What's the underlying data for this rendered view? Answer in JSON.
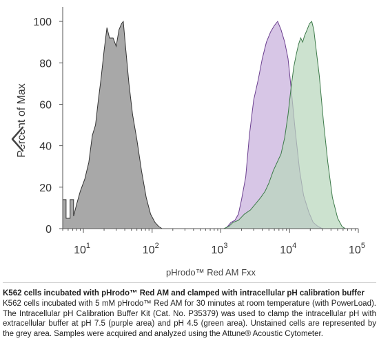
{
  "chart_data": {
    "type": "area",
    "title": "",
    "ylabel": "Percent of Max",
    "xlabel": "pHrodo™ Red AM Fxx",
    "xscale": "log",
    "xlim": [
      5,
      100000
    ],
    "ylim": [
      0,
      107
    ],
    "yticks": [
      "0",
      "20",
      "40",
      "60",
      "80",
      "100"
    ],
    "xticks": [
      {
        "value": 10,
        "base": "10",
        "exp": "1"
      },
      {
        "value": 100,
        "base": "10",
        "exp": "2"
      },
      {
        "value": 1000,
        "base": "10",
        "exp": "3"
      },
      {
        "value": 10000,
        "base": "10",
        "exp": "4"
      },
      {
        "value": 100000,
        "base": "10",
        "exp": "5"
      }
    ],
    "grid": false,
    "series": [
      {
        "key": "unstained",
        "color": "#a8a8a8",
        "stroke": "#333333",
        "points": [
          [
            5,
            0
          ],
          [
            5,
            14
          ],
          [
            5.6,
            14
          ],
          [
            5.6,
            5
          ],
          [
            6.4,
            5
          ],
          [
            6.4,
            14
          ],
          [
            7.2,
            14
          ],
          [
            7.2,
            6
          ],
          [
            8,
            12
          ],
          [
            9,
            18
          ],
          [
            10.5,
            24
          ],
          [
            12,
            32
          ],
          [
            13.5,
            45
          ],
          [
            15,
            50
          ],
          [
            16.5,
            62
          ],
          [
            18,
            72
          ],
          [
            20,
            86
          ],
          [
            22,
            97
          ],
          [
            24,
            92
          ],
          [
            27,
            92
          ],
          [
            30,
            88
          ],
          [
            33,
            96
          ],
          [
            36,
            99
          ],
          [
            38,
            100
          ],
          [
            41,
            88
          ],
          [
            46,
            70
          ],
          [
            52,
            55
          ],
          [
            60,
            43
          ],
          [
            70,
            28
          ],
          [
            82,
            15
          ],
          [
            95,
            7
          ],
          [
            110,
            3
          ],
          [
            125,
            1
          ],
          [
            140,
            0
          ]
        ]
      },
      {
        "key": "pH 7.5",
        "color": "#c8b0dc",
        "stroke": "#6b3f8f",
        "points": [
          [
            900,
            0
          ],
          [
            1150,
            0
          ],
          [
            1250,
            1
          ],
          [
            1400,
            3
          ],
          [
            1600,
            4
          ],
          [
            1800,
            7
          ],
          [
            2000,
            14
          ],
          [
            2300,
            25
          ],
          [
            2600,
            45
          ],
          [
            3000,
            62
          ],
          [
            3500,
            72
          ],
          [
            4000,
            82
          ],
          [
            4600,
            90
          ],
          [
            5300,
            95
          ],
          [
            6000,
            98
          ],
          [
            6700,
            100
          ],
          [
            7500,
            96
          ],
          [
            8500,
            90
          ],
          [
            9500,
            82
          ],
          [
            10500,
            68
          ],
          [
            12000,
            48
          ],
          [
            14000,
            28
          ],
          [
            16000,
            16
          ],
          [
            19000,
            8
          ],
          [
            22000,
            3
          ],
          [
            26000,
            1
          ],
          [
            30000,
            0
          ]
        ]
      },
      {
        "key": "pH 4.5",
        "color": "#b9d7bd",
        "stroke": "#3d7a4a",
        "points": [
          [
            1100,
            0
          ],
          [
            1300,
            1
          ],
          [
            1500,
            3
          ],
          [
            1800,
            4
          ],
          [
            2200,
            7
          ],
          [
            2700,
            9
          ],
          [
            3200,
            12
          ],
          [
            3800,
            15
          ],
          [
            4400,
            18
          ],
          [
            5000,
            22
          ],
          [
            5800,
            28
          ],
          [
            6800,
            33
          ],
          [
            7500,
            36
          ],
          [
            8500,
            44
          ],
          [
            9500,
            55
          ],
          [
            10500,
            68
          ],
          [
            11500,
            78
          ],
          [
            12500,
            84
          ],
          [
            13500,
            89
          ],
          [
            14500,
            92
          ],
          [
            15500,
            90
          ],
          [
            16500,
            93
          ],
          [
            18000,
            96
          ],
          [
            19500,
            99
          ],
          [
            21000,
            100
          ],
          [
            22500,
            96
          ],
          [
            24000,
            88
          ],
          [
            27000,
            74
          ],
          [
            31000,
            52
          ],
          [
            36000,
            32
          ],
          [
            42000,
            15
          ],
          [
            50000,
            5
          ],
          [
            58000,
            1
          ],
          [
            65000,
            0
          ]
        ]
      }
    ]
  },
  "caption": {
    "title": "K562 cells incubated with pHrodo™ Red AM and clamped with intracellular pH calibration buffer",
    "body": "K562 cells incubated with 5 mM pHrodo™ Red AM for 30 minutes at room temperature (with PowerLoad). The Intracellular pH Calibration Buffer Kit (Cat. No. P35379) was used to clamp the intracellular pH with extracellular buffer at pH 7.5 (purple area) and pH 4.5 (green area). Unstained cells are represented by the grey area. Samples were acquired and analyzed using the Attune® Acoustic Cytometer."
  },
  "icons": {
    "prev_arrow": "chevron-left-icon"
  }
}
